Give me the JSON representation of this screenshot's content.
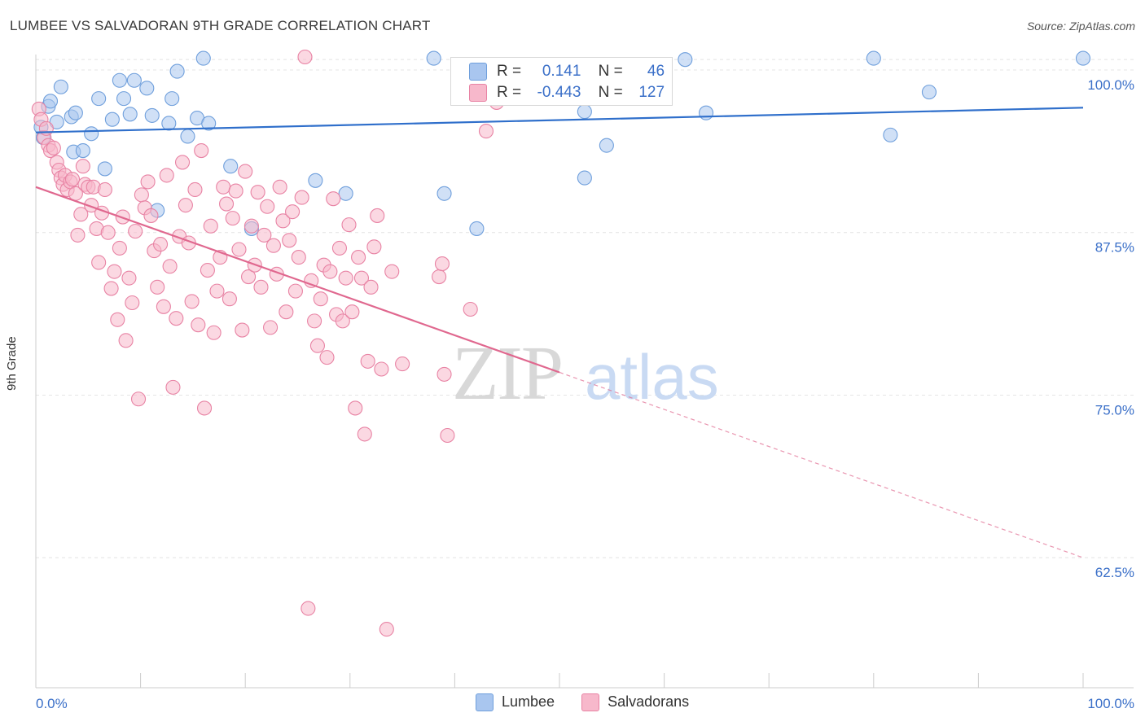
{
  "title": "LUMBEE VS SALVADORAN 9TH GRADE CORRELATION CHART",
  "source": "Source: ZipAtlas.com",
  "watermark": {
    "zip": "ZIP",
    "atlas": "atlas"
  },
  "legend": {
    "rows": [
      {
        "r_label": "R =",
        "r_value": "0.141",
        "n_label": "N =",
        "n_value": "46",
        "color": "#a9c6ef",
        "border": "#6f9fdc"
      },
      {
        "r_label": "R =",
        "r_value": "-0.443",
        "n_label": "N =",
        "n_value": "127",
        "color": "#f7b8cb",
        "border": "#e883a4"
      }
    ]
  },
  "bottom_legend": [
    {
      "label": "Lumbee",
      "color": "#a9c6ef",
      "border": "#6f9fdc"
    },
    {
      "label": "Salvadorans",
      "color": "#f7b8cb",
      "border": "#e883a4"
    }
  ],
  "chart_data": {
    "type": "scatter",
    "ylabel": "9th Grade",
    "xlim": [
      0,
      100
    ],
    "ylim": [
      52.5,
      101.5
    ],
    "x_tick_labels": [
      "0.0%",
      "100.0%"
    ],
    "y_ticks": [
      62.5,
      75.0,
      87.5,
      100.0
    ],
    "y_tick_labels": [
      "62.5%",
      "75.0%",
      "87.5%",
      "100.0%"
    ],
    "grid": true,
    "series": [
      {
        "name": "Lumbee",
        "color": "#6f9fdc",
        "fill": "#a9c6ef",
        "line_color": "#2f6fcb",
        "trend": {
          "x": [
            0,
            100
          ],
          "y": [
            95.2,
            97.1
          ],
          "dashed_x": null
        },
        "points": [
          [
            0.5,
            95.6
          ],
          [
            0.7,
            94.8
          ],
          [
            1.2,
            97.2
          ],
          [
            1.4,
            97.6
          ],
          [
            2.0,
            96.0
          ],
          [
            2.4,
            98.7
          ],
          [
            3.4,
            96.4
          ],
          [
            3.8,
            96.7
          ],
          [
            3.6,
            93.7
          ],
          [
            4.5,
            93.8
          ],
          [
            5.3,
            95.1
          ],
          [
            6.0,
            97.8
          ],
          [
            6.6,
            92.4
          ],
          [
            7.3,
            96.2
          ],
          [
            8.0,
            99.2
          ],
          [
            8.4,
            97.8
          ],
          [
            9.0,
            96.6
          ],
          [
            9.4,
            99.2
          ],
          [
            10.6,
            98.6
          ],
          [
            11.1,
            96.5
          ],
          [
            11.6,
            89.2
          ],
          [
            12.7,
            95.9
          ],
          [
            13.0,
            97.8
          ],
          [
            13.5,
            99.9
          ],
          [
            14.5,
            94.9
          ],
          [
            15.4,
            96.3
          ],
          [
            16.0,
            100.9
          ],
          [
            16.5,
            95.9
          ],
          [
            18.6,
            92.6
          ],
          [
            20.6,
            87.8
          ],
          [
            26.7,
            91.5
          ],
          [
            29.6,
            90.5
          ],
          [
            38.0,
            100.9
          ],
          [
            39.0,
            90.5
          ],
          [
            42.1,
            87.8
          ],
          [
            52.4,
            96.8
          ],
          [
            52.4,
            91.7
          ],
          [
            54.5,
            94.2
          ],
          [
            62.0,
            100.8
          ],
          [
            64.0,
            96.7
          ],
          [
            80.0,
            100.9
          ],
          [
            81.6,
            95.0
          ],
          [
            85.3,
            98.3
          ],
          [
            100.0,
            100.9
          ]
        ]
      },
      {
        "name": "Salvadorans",
        "color": "#e883a4",
        "fill": "#f7b8cb",
        "line_color": "#e0688f",
        "trend": {
          "x": [
            0,
            100
          ],
          "y": [
            91.0,
            62.5
          ],
          "solid_until_x": 50.0
        },
        "points": [
          [
            0.3,
            97.0
          ],
          [
            0.5,
            96.2
          ],
          [
            0.8,
            94.8
          ],
          [
            1.0,
            95.5
          ],
          [
            1.2,
            94.2
          ],
          [
            1.4,
            93.8
          ],
          [
            1.7,
            94.0
          ],
          [
            2.0,
            92.9
          ],
          [
            2.2,
            92.3
          ],
          [
            2.4,
            91.7
          ],
          [
            2.6,
            91.2
          ],
          [
            2.8,
            91.9
          ],
          [
            3.0,
            90.8
          ],
          [
            3.3,
            91.4
          ],
          [
            3.5,
            91.6
          ],
          [
            3.8,
            90.5
          ],
          [
            4.0,
            87.3
          ],
          [
            4.3,
            88.9
          ],
          [
            4.5,
            92.6
          ],
          [
            4.7,
            91.2
          ],
          [
            5.0,
            91.0
          ],
          [
            5.3,
            89.6
          ],
          [
            5.5,
            91.0
          ],
          [
            5.8,
            87.8
          ],
          [
            6.0,
            85.2
          ],
          [
            6.3,
            89.0
          ],
          [
            6.6,
            90.8
          ],
          [
            6.9,
            87.5
          ],
          [
            7.2,
            83.2
          ],
          [
            7.5,
            84.5
          ],
          [
            7.8,
            80.8
          ],
          [
            8.0,
            86.3
          ],
          [
            8.3,
            88.7
          ],
          [
            8.6,
            79.2
          ],
          [
            8.9,
            84.0
          ],
          [
            9.2,
            82.1
          ],
          [
            9.5,
            87.6
          ],
          [
            9.8,
            74.7
          ],
          [
            10.1,
            90.4
          ],
          [
            10.4,
            89.4
          ],
          [
            10.7,
            91.4
          ],
          [
            11.0,
            88.8
          ],
          [
            11.3,
            86.1
          ],
          [
            11.6,
            83.3
          ],
          [
            11.9,
            86.6
          ],
          [
            12.2,
            81.8
          ],
          [
            12.5,
            91.9
          ],
          [
            12.8,
            84.9
          ],
          [
            13.1,
            75.6
          ],
          [
            13.4,
            80.9
          ],
          [
            13.7,
            87.2
          ],
          [
            14.0,
            92.9
          ],
          [
            14.3,
            89.6
          ],
          [
            14.6,
            86.7
          ],
          [
            14.9,
            82.2
          ],
          [
            15.2,
            90.8
          ],
          [
            15.5,
            80.4
          ],
          [
            15.8,
            93.8
          ],
          [
            16.1,
            74.0
          ],
          [
            16.4,
            84.6
          ],
          [
            16.7,
            88.0
          ],
          [
            17.0,
            79.8
          ],
          [
            17.3,
            83.0
          ],
          [
            17.6,
            85.6
          ],
          [
            17.9,
            91.0
          ],
          [
            18.2,
            89.7
          ],
          [
            18.5,
            82.4
          ],
          [
            18.8,
            88.6
          ],
          [
            19.1,
            90.7
          ],
          [
            19.4,
            86.2
          ],
          [
            19.7,
            80.0
          ],
          [
            20.0,
            92.2
          ],
          [
            20.3,
            84.1
          ],
          [
            20.6,
            88.0
          ],
          [
            20.9,
            85.0
          ],
          [
            21.2,
            90.6
          ],
          [
            21.5,
            83.3
          ],
          [
            21.8,
            87.3
          ],
          [
            22.1,
            89.5
          ],
          [
            22.4,
            80.2
          ],
          [
            22.7,
            86.5
          ],
          [
            23.0,
            84.3
          ],
          [
            23.3,
            91.0
          ],
          [
            23.6,
            88.4
          ],
          [
            23.9,
            81.4
          ],
          [
            24.2,
            86.9
          ],
          [
            24.5,
            89.1
          ],
          [
            24.8,
            83.0
          ],
          [
            25.1,
            85.6
          ],
          [
            25.4,
            90.2
          ],
          [
            25.7,
            101.0
          ],
          [
            26.0,
            58.6
          ],
          [
            26.3,
            83.8
          ],
          [
            26.6,
            80.7
          ],
          [
            26.9,
            78.8
          ],
          [
            27.2,
            82.4
          ],
          [
            27.5,
            85.0
          ],
          [
            27.8,
            77.9
          ],
          [
            28.1,
            84.5
          ],
          [
            28.4,
            90.1
          ],
          [
            28.7,
            81.2
          ],
          [
            29.0,
            86.3
          ],
          [
            29.3,
            80.7
          ],
          [
            29.6,
            84.0
          ],
          [
            29.9,
            88.1
          ],
          [
            30.2,
            81.4
          ],
          [
            30.5,
            74.0
          ],
          [
            30.8,
            85.6
          ],
          [
            31.1,
            84.0
          ],
          [
            31.4,
            72.0
          ],
          [
            31.7,
            77.6
          ],
          [
            32.0,
            83.3
          ],
          [
            32.3,
            86.4
          ],
          [
            32.6,
            88.8
          ],
          [
            33.0,
            77.0
          ],
          [
            33.5,
            57.0
          ],
          [
            34.0,
            84.5
          ],
          [
            35.0,
            77.4
          ],
          [
            38.5,
            84.1
          ],
          [
            38.8,
            85.1
          ],
          [
            39.0,
            76.6
          ],
          [
            39.3,
            71.9
          ],
          [
            41.5,
            81.6
          ],
          [
            43.0,
            95.3
          ],
          [
            44.0,
            97.5
          ]
        ]
      }
    ]
  }
}
